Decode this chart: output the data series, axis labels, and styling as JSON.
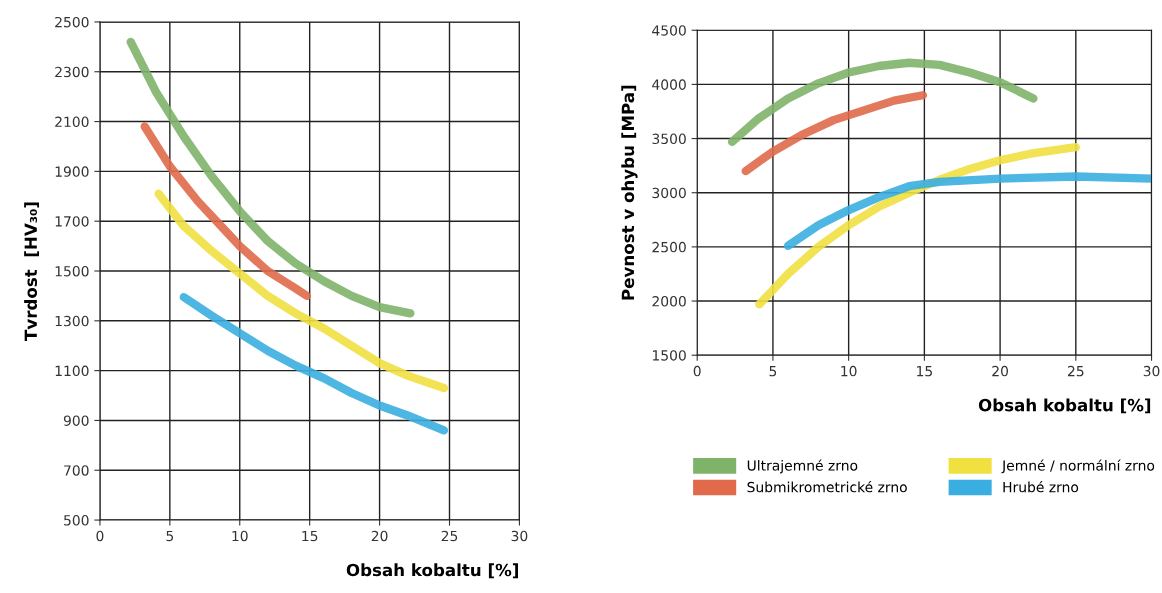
{
  "chart_data": [
    {
      "type": "line",
      "xlabel": "Obsah kobaltu [%]",
      "ylabel": "Tvrdost  [HV₃₀]",
      "xlim": [
        0,
        30
      ],
      "ylim": [
        500,
        2500
      ],
      "xticks": [
        0,
        5,
        10,
        15,
        20,
        25,
        30
      ],
      "yticks": [
        500,
        700,
        900,
        1100,
        1300,
        1500,
        1700,
        1900,
        2100,
        2300,
        2500
      ],
      "grid": true,
      "legend": false,
      "marker": "none",
      "line_style": "solid",
      "series": [
        {
          "color": "#7fb36a",
          "x": [
            2.2,
            4,
            5,
            6,
            8,
            10,
            12,
            14,
            16,
            18,
            20,
            22.2
          ],
          "values": [
            2420,
            2220,
            2130,
            2040,
            1880,
            1740,
            1620,
            1530,
            1460,
            1400,
            1355,
            1330
          ]
        },
        {
          "color": "#e06a4a",
          "x": [
            3.2,
            5,
            7,
            9,
            10,
            12,
            14,
            14.8
          ],
          "values": [
            2080,
            1920,
            1780,
            1660,
            1600,
            1500,
            1430,
            1400
          ]
        },
        {
          "color": "#f0e040",
          "x": [
            4.2,
            6,
            8,
            10,
            12,
            14,
            16,
            18,
            20,
            22,
            24.6
          ],
          "values": [
            1810,
            1680,
            1580,
            1490,
            1400,
            1330,
            1270,
            1200,
            1130,
            1080,
            1030
          ]
        },
        {
          "color": "#3aaee0",
          "x": [
            6,
            8,
            10,
            12,
            14,
            16,
            18,
            20,
            22,
            24.6
          ],
          "values": [
            1395,
            1320,
            1250,
            1180,
            1120,
            1070,
            1010,
            960,
            920,
            860
          ]
        }
      ]
    },
    {
      "type": "line",
      "xlabel": "Obsah kobaltu [%]",
      "ylabel": "Pevnost v ohybu [MPa]",
      "xlim": [
        0,
        30
      ],
      "ylim": [
        1500,
        4500
      ],
      "xticks": [
        0,
        5,
        10,
        15,
        20,
        25,
        30
      ],
      "yticks": [
        1500,
        2000,
        2500,
        3000,
        3500,
        4000,
        4500
      ],
      "grid": true,
      "legend": "bottom",
      "marker": "none",
      "line_style": "solid",
      "series": [
        {
          "name": "Ultrajemné zrno",
          "color": "#7fb36a",
          "x": [
            2.3,
            4,
            6,
            8,
            10,
            12,
            14,
            16,
            18,
            20,
            22.2
          ],
          "values": [
            3470,
            3680,
            3870,
            4010,
            4110,
            4170,
            4200,
            4180,
            4110,
            4020,
            3870
          ]
        },
        {
          "name": "Submikrometrické zrno",
          "color": "#e06a4a",
          "x": [
            3.2,
            5,
            7,
            9,
            11,
            13,
            14.9
          ],
          "values": [
            3200,
            3380,
            3540,
            3670,
            3760,
            3850,
            3900
          ]
        },
        {
          "name": "Jemné / normální zrno",
          "color": "#f0e040",
          "x": [
            4.1,
            6,
            8,
            10,
            12,
            14,
            16,
            18,
            20,
            22,
            25
          ],
          "values": [
            1970,
            2250,
            2500,
            2700,
            2870,
            3000,
            3120,
            3220,
            3300,
            3360,
            3420
          ]
        },
        {
          "name": "Hrubé zrno",
          "color": "#3aaee0",
          "x": [
            6,
            8,
            10,
            12,
            14,
            16,
            20,
            25,
            30
          ],
          "values": [
            2510,
            2700,
            2840,
            2960,
            3060,
            3100,
            3130,
            3150,
            3130
          ]
        }
      ]
    }
  ]
}
